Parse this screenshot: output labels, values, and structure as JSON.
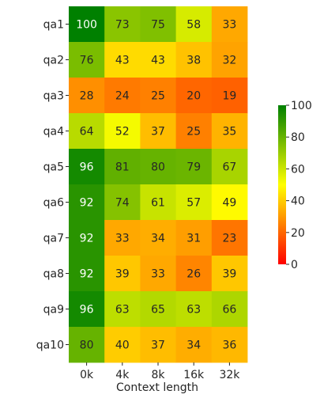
{
  "chart_data": {
    "type": "heatmap",
    "title": "",
    "xlabel": "Context length",
    "ylabel": "",
    "x_categories": [
      "0k",
      "4k",
      "8k",
      "16k",
      "32k"
    ],
    "y_categories": [
      "qa1",
      "qa2",
      "qa3",
      "qa4",
      "qa5",
      "qa6",
      "qa7",
      "qa8",
      "qa9",
      "qa10"
    ],
    "values": [
      [
        100,
        73,
        75,
        58,
        33
      ],
      [
        76,
        43,
        43,
        38,
        32
      ],
      [
        28,
        24,
        25,
        20,
        19
      ],
      [
        64,
        52,
        37,
        25,
        35
      ],
      [
        96,
        81,
        80,
        79,
        67
      ],
      [
        92,
        74,
        61,
        57,
        49
      ],
      [
        92,
        33,
        34,
        31,
        23
      ],
      [
        92,
        39,
        33,
        26,
        39
      ],
      [
        96,
        63,
        65,
        63,
        66
      ],
      [
        80,
        40,
        37,
        34,
        36
      ]
    ],
    "value_range": [
      0,
      100
    ],
    "colorscale": [
      "#ff0000",
      "#ffff00",
      "#008000"
    ],
    "colorbar": {
      "ticks": [
        "0",
        "20",
        "40",
        "60",
        "80",
        "100"
      ],
      "placement": "right"
    },
    "annotations_shown": true,
    "grid": false
  }
}
